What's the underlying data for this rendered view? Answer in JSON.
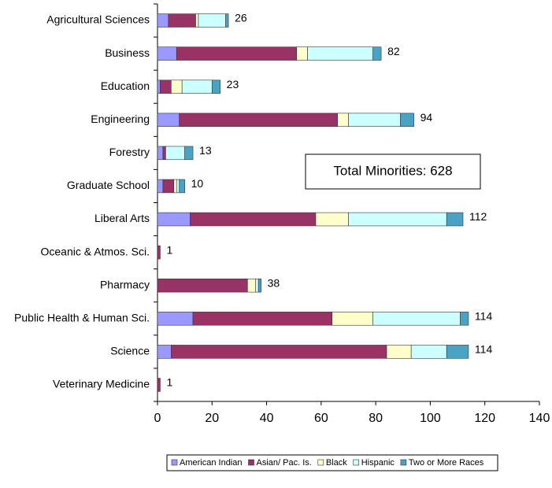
{
  "chart_data": {
    "type": "stacked_bar_horizontal",
    "categories": [
      "Agricultural Sciences",
      "Business",
      "Education",
      "Engineering",
      "Forestry",
      "Graduate School",
      "Liberal Arts",
      "Oceanic & Atmos. Sci.",
      "Pharmacy",
      "Public Health & Human Sci.",
      "Science",
      "Veterinary Medicine"
    ],
    "series": [
      {
        "name": "American Indian",
        "color": "#9999ff",
        "values": [
          4,
          7,
          1,
          8,
          2,
          2,
          12,
          0,
          0,
          13,
          5,
          0
        ]
      },
      {
        "name": "Asian/ Pac. Is.",
        "color": "#993366",
        "values": [
          10,
          44,
          4,
          58,
          1,
          4,
          46,
          1,
          33,
          51,
          79,
          1
        ]
      },
      {
        "name": "Black",
        "color": "#ffffcc",
        "values": [
          1,
          4,
          4,
          4,
          0,
          1,
          12,
          0,
          3,
          15,
          9,
          0
        ]
      },
      {
        "name": "Hispanic",
        "color": "#ccffff",
        "values": [
          10,
          24,
          11,
          19,
          7,
          1,
          36,
          0,
          1,
          32,
          13,
          0
        ]
      },
      {
        "name": "Two or More Races",
        "color": "#4aa3c4",
        "values": [
          1,
          3,
          3,
          5,
          3,
          2,
          6,
          0,
          1,
          3,
          8,
          0
        ]
      }
    ],
    "totals": [
      26,
      82,
      23,
      94,
      13,
      10,
      112,
      1,
      38,
      114,
      114,
      1
    ],
    "annotation": "Total Minorities:  628",
    "xlim": [
      0,
      140
    ],
    "xticks": [
      0,
      20,
      40,
      60,
      80,
      100,
      120,
      140
    ],
    "legend": "bottom"
  }
}
